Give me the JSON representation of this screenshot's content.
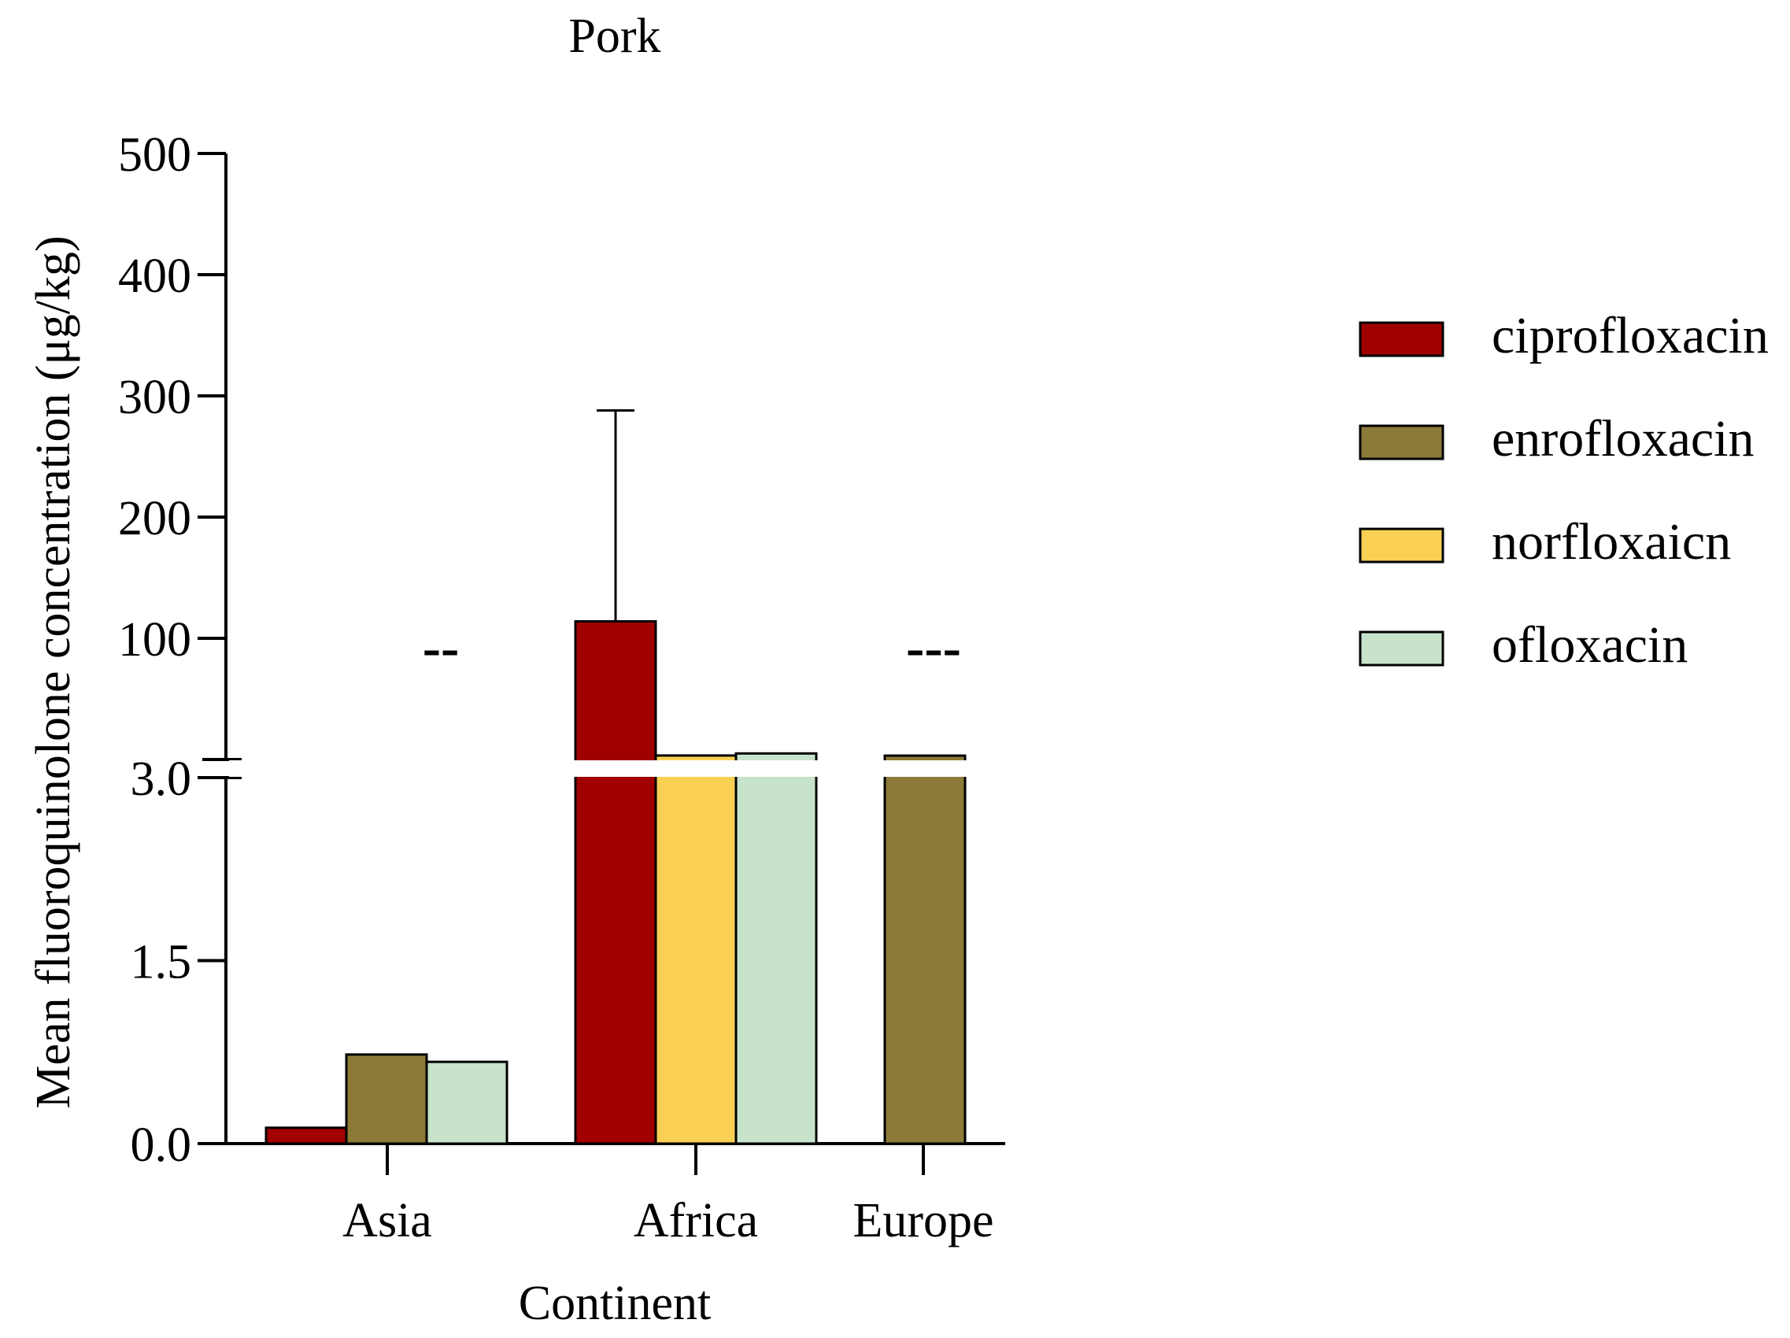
{
  "chart_data": {
    "type": "bar",
    "title": "Pork",
    "xlabel": "Continent",
    "ylabel": "Mean fluoroquinolone concentration (μg/kg)",
    "categories": [
      "Asia",
      "Africa",
      "Europe"
    ],
    "y_axis": {
      "broken": true,
      "lower_segment": {
        "range": [
          0,
          3.0
        ],
        "ticks": [
          "0.0",
          "1.5",
          "3.0"
        ]
      },
      "upper_segment": {
        "range": [
          3.0,
          500
        ],
        "ticks": [
          "100",
          "200",
          "300",
          "400",
          "500"
        ]
      }
    },
    "series": [
      {
        "name": "ciprofloxacin",
        "color": "#a00000",
        "values": [
          0.13,
          114,
          null
        ],
        "error_upper": [
          null,
          288,
          null
        ]
      },
      {
        "name": "enrofloxacin",
        "color": "#8b7a38",
        "values": [
          0.73,
          null,
          3.2
        ],
        "error_upper": [
          null,
          null,
          null
        ]
      },
      {
        "name": "norfloxaicn",
        "color": "#f9d053",
        "values": [
          null,
          3.3,
          null
        ],
        "error_upper": [
          null,
          null,
          null
        ]
      },
      {
        "name": "ofloxacin",
        "color": "#c7e3cb",
        "values": [
          0.67,
          5,
          null
        ],
        "error_upper": [
          null,
          null,
          null
        ]
      }
    ],
    "annotations": [
      {
        "category": "Asia",
        "text": "--"
      },
      {
        "category": "Europe",
        "text": "---"
      }
    ],
    "legend_position": "right",
    "grid": false
  }
}
